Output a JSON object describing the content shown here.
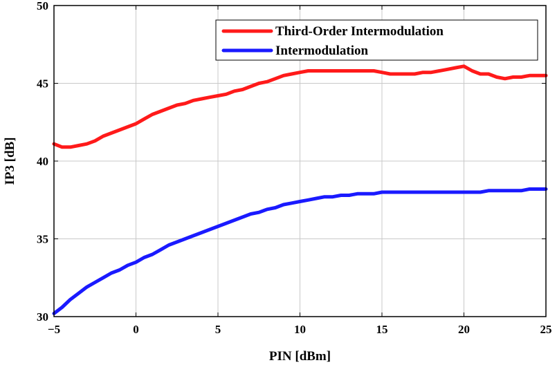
{
  "chart_data": {
    "type": "line",
    "xlabel": "PIN [dBm]",
    "ylabel": "IP3 [dB]",
    "xlim": [
      -5,
      25
    ],
    "ylim": [
      30,
      50
    ],
    "xticks": [
      "−5",
      "0",
      "5",
      "10",
      "15",
      "20",
      "25"
    ],
    "yticks": [
      "30",
      "35",
      "40",
      "45",
      "50"
    ],
    "grid": true,
    "legend_position": "top-right",
    "series": [
      {
        "name": "Third-Order Intermodulation",
        "color": "#ff1a1a",
        "x": [
          -5,
          -4.5,
          -4,
          -3.5,
          -3,
          -2.5,
          -2,
          -1.5,
          -1,
          -0.5,
          0,
          0.5,
          1,
          1.5,
          2,
          2.5,
          3,
          3.5,
          4,
          4.5,
          5,
          5.5,
          6,
          6.5,
          7,
          7.5,
          8,
          8.5,
          9,
          9.5,
          10,
          10.5,
          11,
          11.5,
          12,
          12.5,
          13,
          13.5,
          14,
          14.5,
          15,
          15.5,
          16,
          16.5,
          17,
          17.5,
          18,
          18.5,
          19,
          19.5,
          20,
          20.5,
          21,
          21.5,
          22,
          22.5,
          23,
          23.5,
          24,
          24.5,
          25
        ],
        "y": [
          41.1,
          40.9,
          40.9,
          41.0,
          41.1,
          41.3,
          41.6,
          41.8,
          42.0,
          42.2,
          42.4,
          42.7,
          43.0,
          43.2,
          43.4,
          43.6,
          43.7,
          43.9,
          44.0,
          44.1,
          44.2,
          44.3,
          44.5,
          44.6,
          44.8,
          45.0,
          45.1,
          45.3,
          45.5,
          45.6,
          45.7,
          45.8,
          45.8,
          45.8,
          45.8,
          45.8,
          45.8,
          45.8,
          45.8,
          45.8,
          45.7,
          45.6,
          45.6,
          45.6,
          45.6,
          45.7,
          45.7,
          45.8,
          45.9,
          46.0,
          46.1,
          45.8,
          45.6,
          45.6,
          45.4,
          45.3,
          45.4,
          45.4,
          45.5,
          45.5,
          45.5
        ]
      },
      {
        "name": "Intermodulation",
        "color": "#1a1aff",
        "x": [
          -5,
          -4.5,
          -4,
          -3.5,
          -3,
          -2.5,
          -2,
          -1.5,
          -1,
          -0.5,
          0,
          0.5,
          1,
          1.5,
          2,
          2.5,
          3,
          3.5,
          4,
          4.5,
          5,
          5.5,
          6,
          6.5,
          7,
          7.5,
          8,
          8.5,
          9,
          9.5,
          10,
          10.5,
          11,
          11.5,
          12,
          12.5,
          13,
          13.5,
          14,
          14.5,
          15,
          15.5,
          16,
          16.5,
          17,
          17.5,
          18,
          18.5,
          19,
          19.5,
          20,
          20.5,
          21,
          21.5,
          22,
          22.5,
          23,
          23.5,
          24,
          24.5,
          25
        ],
        "y": [
          30.2,
          30.6,
          31.1,
          31.5,
          31.9,
          32.2,
          32.5,
          32.8,
          33.0,
          33.3,
          33.5,
          33.8,
          34.0,
          34.3,
          34.6,
          34.8,
          35.0,
          35.2,
          35.4,
          35.6,
          35.8,
          36.0,
          36.2,
          36.4,
          36.6,
          36.7,
          36.9,
          37.0,
          37.2,
          37.3,
          37.4,
          37.5,
          37.6,
          37.7,
          37.7,
          37.8,
          37.8,
          37.9,
          37.9,
          37.9,
          38.0,
          38.0,
          38.0,
          38.0,
          38.0,
          38.0,
          38.0,
          38.0,
          38.0,
          38.0,
          38.0,
          38.0,
          38.0,
          38.1,
          38.1,
          38.1,
          38.1,
          38.1,
          38.2,
          38.2,
          38.2
        ]
      }
    ]
  }
}
